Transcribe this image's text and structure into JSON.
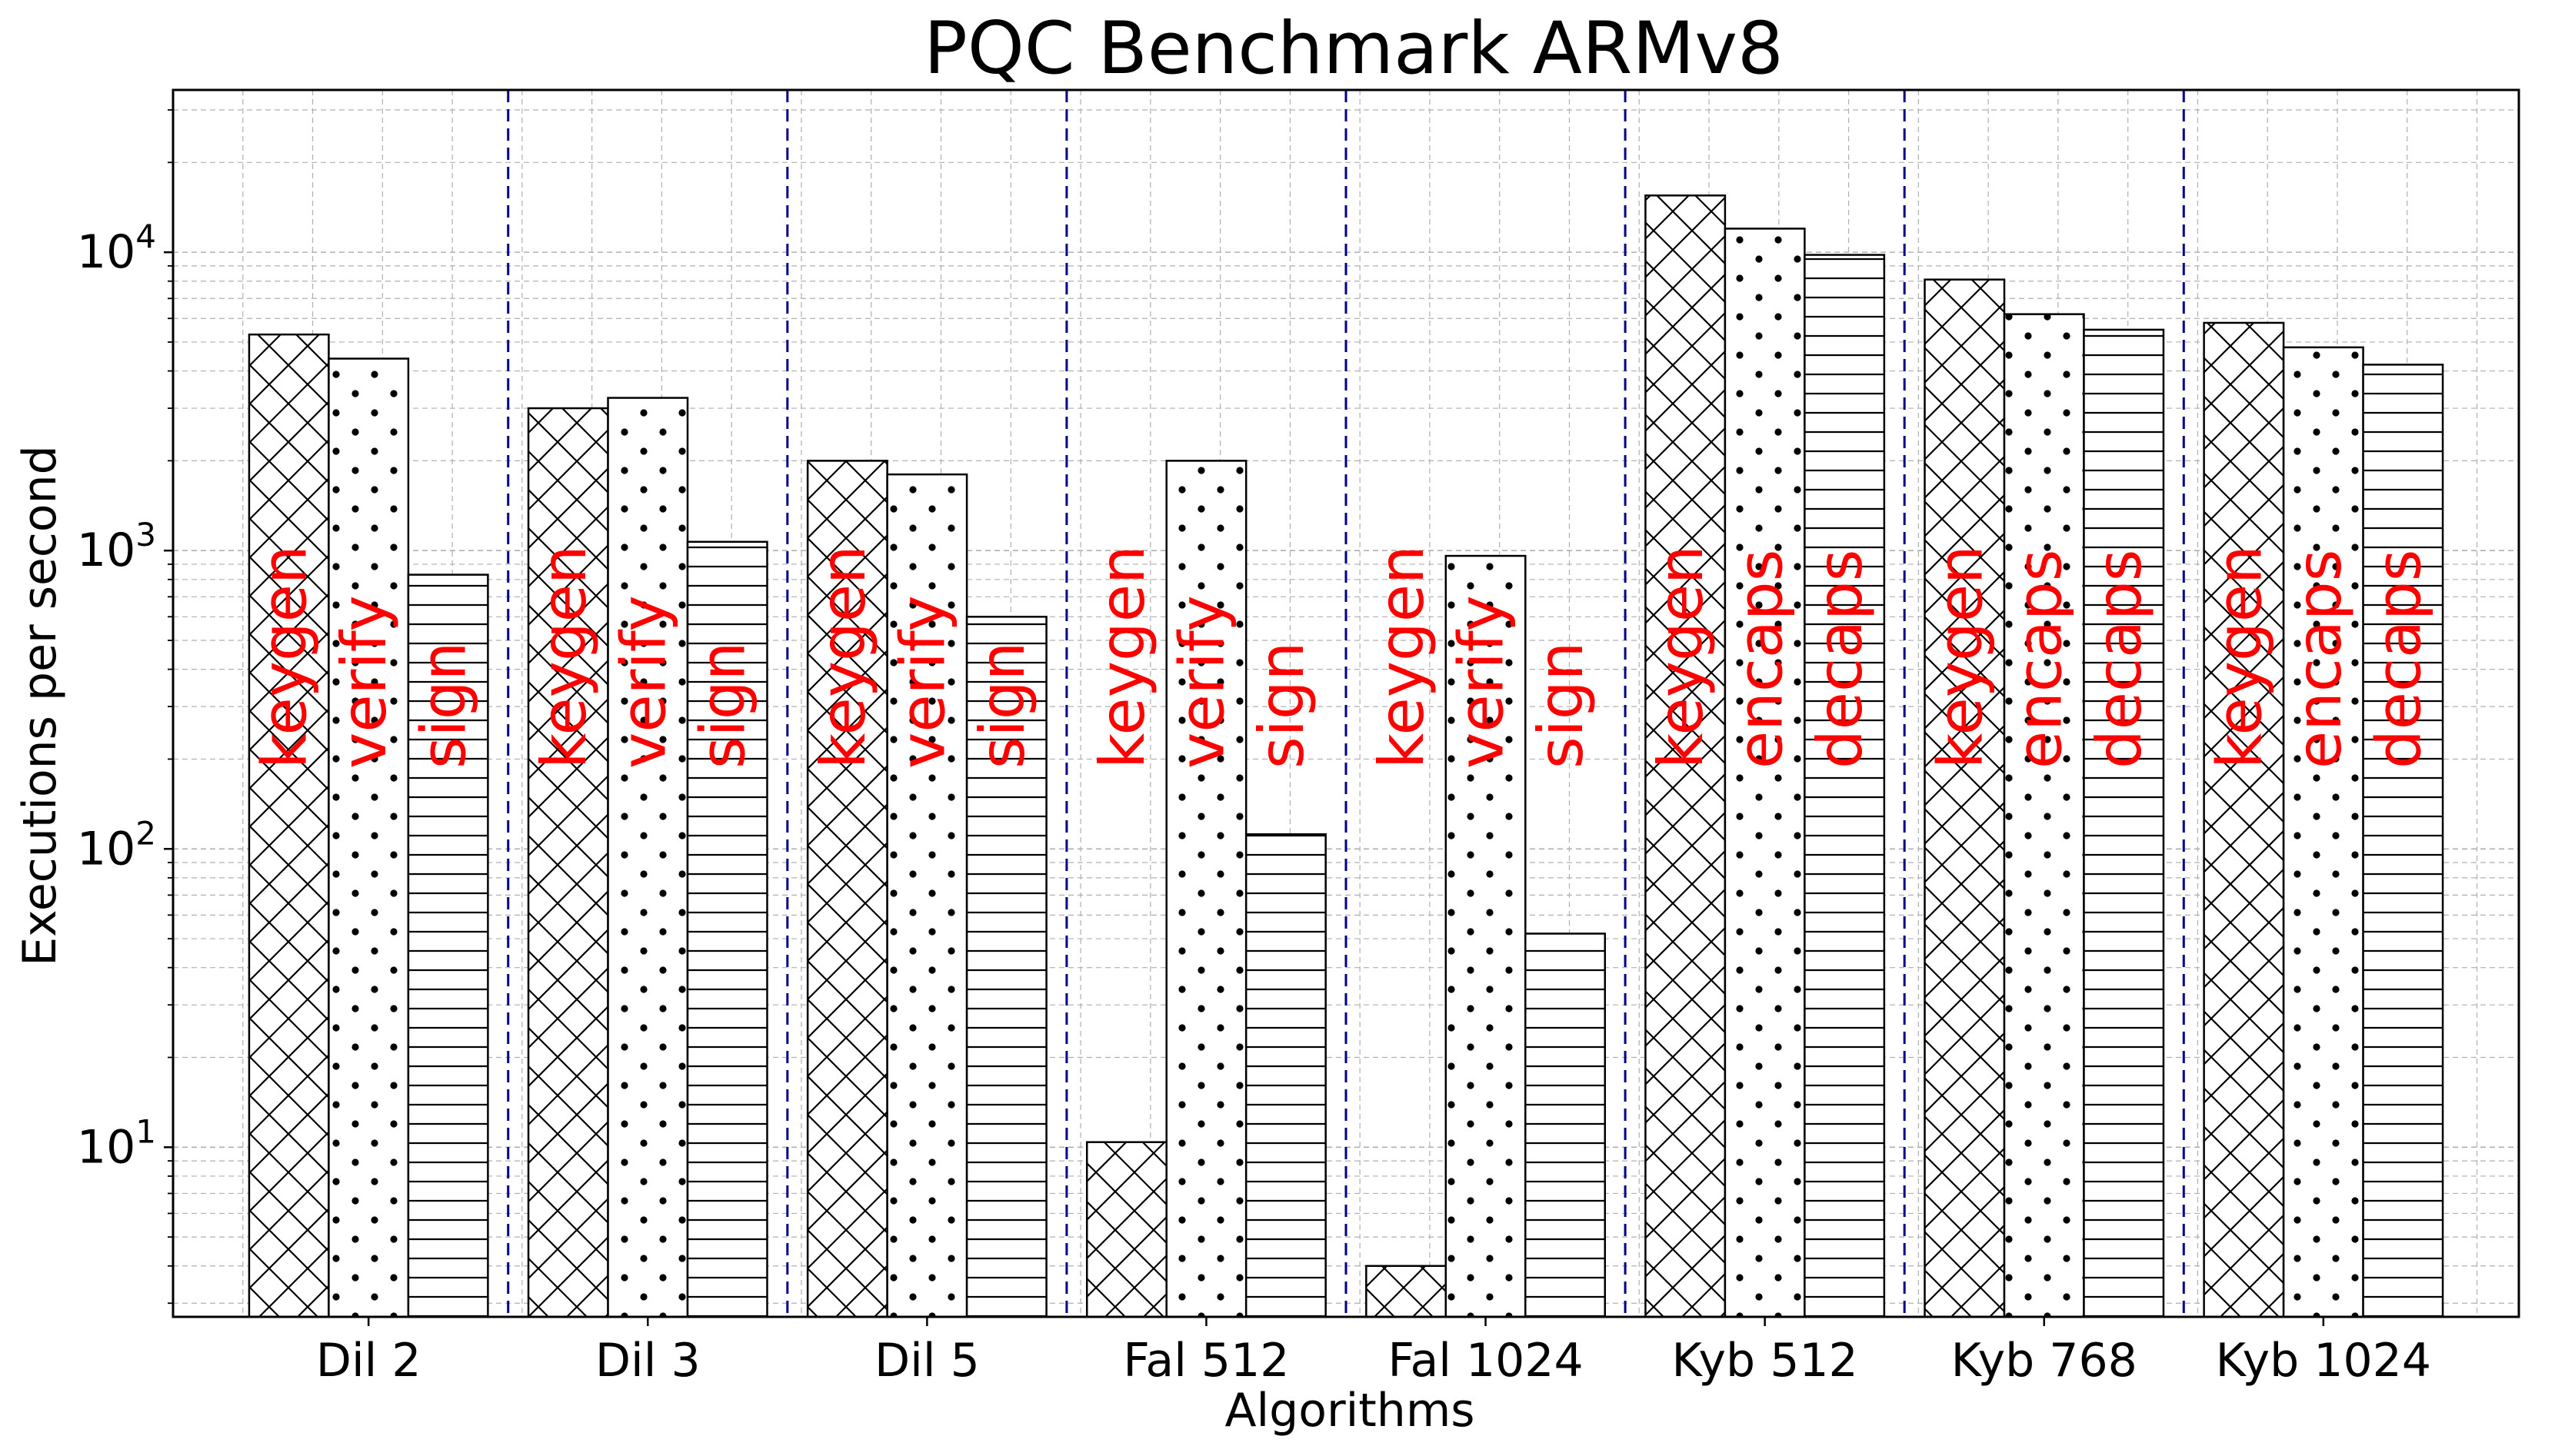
{
  "chart_data": {
    "type": "bar",
    "title": "PQC Benchmark ARMv8",
    "xlabel": "Algorithms",
    "ylabel": "Executions per second",
    "yscale": "log",
    "ylim": [
      2.7,
      35000
    ],
    "grid": true,
    "y_ticks": [
      {
        "value": 10,
        "base": "10",
        "exp": "1"
      },
      {
        "value": 100,
        "base": "10",
        "exp": "2"
      },
      {
        "value": 1000,
        "base": "10",
        "exp": "3"
      },
      {
        "value": 10000,
        "base": "10",
        "exp": "4"
      }
    ],
    "label_color": "#ff0000",
    "separator_color": "#00008b",
    "groups": [
      {
        "name": "Dil 2",
        "bars": [
          {
            "label": "keygen",
            "value": 5300,
            "hatch": "cross"
          },
          {
            "label": "verify",
            "value": 4400,
            "hatch": "dots"
          },
          {
            "label": "sign",
            "value": 830,
            "hatch": "hlines"
          }
        ]
      },
      {
        "name": "Dil 3",
        "bars": [
          {
            "label": "keygen",
            "value": 3000,
            "hatch": "cross"
          },
          {
            "label": "verify",
            "value": 3250,
            "hatch": "dots"
          },
          {
            "label": "sign",
            "value": 1070,
            "hatch": "hlines"
          }
        ]
      },
      {
        "name": "Dil 5",
        "bars": [
          {
            "label": "keygen",
            "value": 2000,
            "hatch": "cross"
          },
          {
            "label": "verify",
            "value": 1800,
            "hatch": "dots"
          },
          {
            "label": "sign",
            "value": 600,
            "hatch": "hlines"
          }
        ]
      },
      {
        "name": "Fal 512",
        "bars": [
          {
            "label": "keygen",
            "value": 10.4,
            "hatch": "cross"
          },
          {
            "label": "verify",
            "value": 2000,
            "hatch": "dots"
          },
          {
            "label": "sign",
            "value": 112,
            "hatch": "hlines"
          }
        ]
      },
      {
        "name": "Fal 1024",
        "bars": [
          {
            "label": "keygen",
            "value": 4.0,
            "hatch": "cross"
          },
          {
            "label": "verify",
            "value": 960,
            "hatch": "dots"
          },
          {
            "label": "sign",
            "value": 52,
            "hatch": "hlines"
          }
        ]
      },
      {
        "name": "Kyb 512",
        "bars": [
          {
            "label": "keygen",
            "value": 15500,
            "hatch": "cross"
          },
          {
            "label": "encaps",
            "value": 12000,
            "hatch": "dots"
          },
          {
            "label": "decaps",
            "value": 9800,
            "hatch": "hlines"
          }
        ]
      },
      {
        "name": "Kyb 768",
        "bars": [
          {
            "label": "keygen",
            "value": 8100,
            "hatch": "cross"
          },
          {
            "label": "encaps",
            "value": 6200,
            "hatch": "dots"
          },
          {
            "label": "decaps",
            "value": 5500,
            "hatch": "hlines"
          }
        ]
      },
      {
        "name": "Kyb 1024",
        "bars": [
          {
            "label": "keygen",
            "value": 5800,
            "hatch": "cross"
          },
          {
            "label": "encaps",
            "value": 4800,
            "hatch": "dots"
          },
          {
            "label": "decaps",
            "value": 4200,
            "hatch": "hlines"
          }
        ]
      }
    ]
  }
}
